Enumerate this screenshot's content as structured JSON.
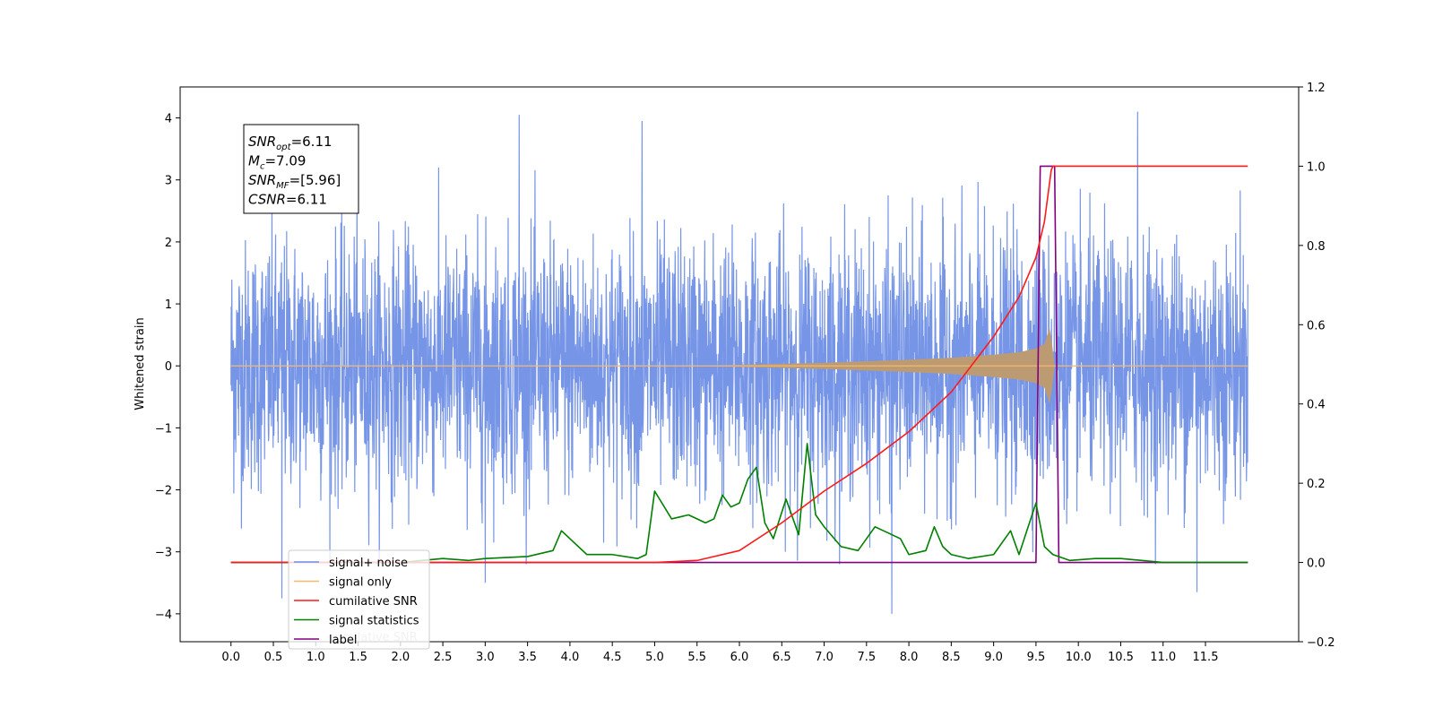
{
  "chart_data": {
    "type": "line",
    "title": "",
    "xlabel": "",
    "ylabel": "Whitened strain",
    "xlim": [
      -0.6,
      12.6
    ],
    "ylim": [
      -4.45,
      4.5
    ],
    "ylim_right": [
      -0.2,
      1.2
    ],
    "x_ticks": [
      0.0,
      0.5,
      1.0,
      1.5,
      2.0,
      2.5,
      3.0,
      3.5,
      4.0,
      4.5,
      5.0,
      5.5,
      6.0,
      6.5,
      7.0,
      7.5,
      8.0,
      8.5,
      9.0,
      9.5,
      10.0,
      10.5,
      11.0,
      11.5
    ],
    "x_tick_labels": [
      "0.0",
      "0.5",
      "1.0",
      "1.5",
      "2.0",
      "2.5",
      "3.0",
      "3.5",
      "4.0",
      "4.5",
      "5.0",
      "5.5",
      "6.0",
      "6.5",
      "7.0",
      "7.5",
      "8.0",
      "8.5",
      "9.0",
      "9.5",
      "10.0",
      "10.5",
      "11.0",
      "11.5"
    ],
    "y_ticks_left": [
      -4,
      -3,
      -2,
      -1,
      0,
      1,
      2,
      3,
      4
    ],
    "y_tick_labels_left": [
      "−4",
      "−3",
      "−2",
      "−1",
      "0",
      "1",
      "2",
      "3",
      "4"
    ],
    "y_ticks_right": [
      -0.2,
      0.0,
      0.2,
      0.4,
      0.6,
      0.8,
      1.0,
      1.2
    ],
    "y_tick_labels_right": [
      "−0.2",
      "0.0",
      "0.2",
      "0.4",
      "0.6",
      "0.8",
      "1.0",
      "1.2"
    ],
    "grid": false,
    "legend_position": "bottom-left",
    "colors": {
      "signal_noise": "#6f8fe6",
      "signal_only": "#f4b870",
      "cumulative_snr": "#ff1a1a",
      "signal_statistics": "#008000",
      "label": "#800080"
    },
    "series": [
      {
        "name": "signal+ noise",
        "axis": "left",
        "style": "dense noise, roughly ±2.5 typical with spikes to about ±4",
        "x": [
          0.0,
          12.0
        ],
        "y_envelope": [
          -2.5,
          2.5
        ],
        "spikes": [
          {
            "x": 0.6,
            "y": -3.75
          },
          {
            "x": 3.0,
            "y": -3.5
          },
          {
            "x": 3.4,
            "y": 4.05
          },
          {
            "x": 4.85,
            "y": 3.95
          },
          {
            "x": 7.8,
            "y": -4.0
          },
          {
            "x": 10.7,
            "y": 4.1
          },
          {
            "x": 11.4,
            "y": -3.65
          }
        ]
      },
      {
        "name": "signal only",
        "axis": "left",
        "style": "chirp growing from 0 to about ±0.7 near x=9.7",
        "x": [
          0.0,
          5.5,
          7.0,
          8.0,
          8.5,
          9.0,
          9.3,
          9.5,
          9.6,
          9.68,
          9.7,
          12.0
        ],
        "amplitude": [
          0.0,
          0.0,
          0.05,
          0.1,
          0.13,
          0.18,
          0.22,
          0.28,
          0.35,
          0.7,
          0.0,
          0.0
        ]
      },
      {
        "name": "cumilative SNR",
        "axis": "right",
        "x": [
          0.0,
          5.0,
          5.5,
          6.0,
          6.5,
          7.0,
          7.5,
          8.0,
          8.5,
          9.0,
          9.3,
          9.5,
          9.6,
          9.68,
          9.7,
          12.0
        ],
        "y": [
          0.0,
          0.0,
          0.005,
          0.03,
          0.1,
          0.18,
          0.25,
          0.33,
          0.43,
          0.57,
          0.67,
          0.77,
          0.86,
          0.99,
          1.0,
          1.0
        ]
      },
      {
        "name": "signal statistics",
        "axis": "right",
        "x": [
          0.0,
          1.0,
          2.0,
          2.5,
          2.8,
          3.0,
          3.5,
          3.8,
          3.9,
          4.0,
          4.2,
          4.5,
          4.8,
          4.9,
          5.0,
          5.2,
          5.4,
          5.6,
          5.7,
          5.8,
          5.9,
          6.0,
          6.1,
          6.2,
          6.3,
          6.4,
          6.55,
          6.7,
          6.8,
          6.9,
          7.0,
          7.2,
          7.4,
          7.6,
          7.7,
          7.9,
          8.0,
          8.2,
          8.3,
          8.4,
          8.5,
          8.7,
          9.0,
          9.2,
          9.3,
          9.5,
          9.6,
          9.7,
          9.9,
          10.2,
          10.5,
          11.0,
          12.0
        ],
        "y": [
          0.0,
          0.0,
          0.0,
          0.01,
          0.005,
          0.01,
          0.015,
          0.03,
          0.08,
          0.06,
          0.02,
          0.02,
          0.01,
          0.02,
          0.18,
          0.11,
          0.12,
          0.1,
          0.11,
          0.17,
          0.14,
          0.15,
          0.21,
          0.24,
          0.1,
          0.06,
          0.16,
          0.07,
          0.3,
          0.12,
          0.09,
          0.04,
          0.03,
          0.09,
          0.08,
          0.06,
          0.02,
          0.03,
          0.09,
          0.04,
          0.02,
          0.01,
          0.02,
          0.08,
          0.02,
          0.15,
          0.04,
          0.02,
          0.005,
          0.01,
          0.01,
          0.0,
          0.0
        ]
      },
      {
        "name": "label",
        "axis": "right",
        "x": [
          0.0,
          9.5,
          9.55,
          9.72,
          9.77,
          12.0
        ],
        "y": [
          0.0,
          0.0,
          1.0,
          1.0,
          0.0,
          0.0
        ]
      }
    ],
    "annotation": {
      "lines": [
        {
          "main": "SNR",
          "sub": "opt",
          "rest": "=6.11"
        },
        {
          "main": "M",
          "sub": "c",
          "rest": "=7.09"
        },
        {
          "main": "SNR",
          "sub": "MF",
          "rest": "=[5.96]"
        },
        {
          "main": "CSNR",
          "sub": "",
          "rest": "=6.11"
        }
      ]
    },
    "legend": {
      "entries": [
        {
          "label": "signal+ noise",
          "color": "#6f8fe6"
        },
        {
          "label": "signal only",
          "color": "#f4b870"
        },
        {
          "label": "cumilative SNR",
          "color": "#ff1a1a"
        },
        {
          "label": "signal statistics",
          "color": "#008000"
        },
        {
          "label": "label",
          "color": "#800080"
        }
      ],
      "hidden_entry_text": "cumilative SNR"
    }
  }
}
